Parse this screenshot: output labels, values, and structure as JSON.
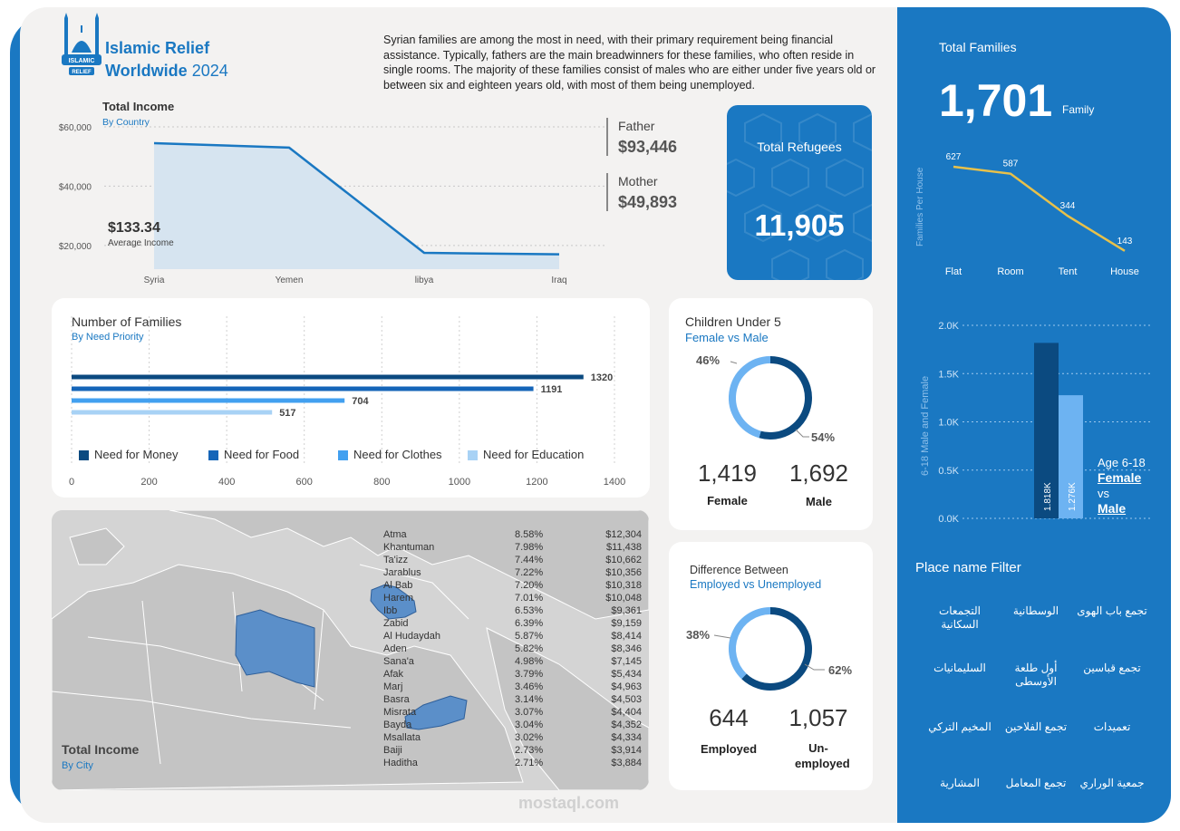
{
  "brand": {
    "name_line1": "Islamic Relief",
    "name_line2": "Worldwide",
    "year": "2024",
    "logo_text": "ISLAMIC RELIEF"
  },
  "description": "Syrian families are among the most in need, with their primary requirement being financial assistance. Typically, fathers are the main breadwinners for these families, who often reside in single rooms. The majority of these families consist of males who are either under five years old or between six and eighteen years old, with most of them being unemployed.",
  "income": {
    "title": "Total Income",
    "subtitle": "By Country",
    "avg_value": "$133.34",
    "avg_label": "Average Income",
    "father_label": "Father",
    "father_value": "$93,446",
    "mother_label": "Mother",
    "mother_value": "$49,893"
  },
  "refugees": {
    "label": "Total Refugees",
    "value": "11,905"
  },
  "families_card": {
    "title": "Number of Families",
    "subtitle": "By Need Priority"
  },
  "children": {
    "title": "Children Under 5",
    "subtitle": "Female vs Male",
    "pct_female": "46%",
    "pct_male": "54%",
    "female_count": "1,419",
    "female_label": "Female",
    "male_count": "1,692",
    "male_label": "Male"
  },
  "employment": {
    "title": "Difference Between",
    "subtitle": "Employed vs Unemployed",
    "pct_employed": "38%",
    "pct_unemployed": "62%",
    "employed_count": "644",
    "employed_label": "Employed",
    "unemployed_count": "1,057",
    "unemployed_label": "Un-employed"
  },
  "map": {
    "title": "Total Income",
    "subtitle": "By City"
  },
  "total_families": {
    "label": "Total Families",
    "value": "1,701",
    "unit": "Family"
  },
  "age_block": {
    "line1": "Age 6-18",
    "line2": "Female",
    "line3": "vs",
    "line4": "Male"
  },
  "filter": {
    "title": "Place name Filter",
    "items": [
      "التجمعات السكانية",
      "الوسطانية",
      "تجمع باب الهوى",
      "السليمانيات",
      "أول طلعة الأوسطى",
      "تجمع قباسين",
      "المخيم التركي",
      "تجمع الفلاحين",
      "تعميدات",
      "المشارية",
      "تجمع المعامل",
      "جمعية الوراري"
    ]
  },
  "watermark": "mostaql.com",
  "colors": {
    "accent": "#1a78c2",
    "dark_navy": "#0b4a80",
    "light_blue": "#6db3f2",
    "area_fill": "#d6e4f0",
    "yellow_line": "#e8c14a"
  },
  "chart_data": [
    {
      "type": "area",
      "title": "Total Income",
      "subtitle": "By Country",
      "categories": [
        "Syria",
        "Yemen",
        "libya",
        "Iraq"
      ],
      "values": [
        54500,
        53000,
        17500,
        17000
      ],
      "ylim": [
        12000,
        60000
      ],
      "yticks": [
        20000,
        40000,
        60000
      ],
      "ytick_labels": [
        "$20,000",
        "$40,000",
        "$60,000"
      ],
      "grid": true
    },
    {
      "type": "bar",
      "orientation": "horizontal",
      "title": "Number of Families",
      "subtitle": "By Need Priority",
      "categories": [
        "Need for Money",
        "Need for Food",
        "Need for Clothes",
        "Need for Education"
      ],
      "values": [
        1320,
        1191,
        704,
        517
      ],
      "colors": [
        "#0b4a80",
        "#1565b8",
        "#42a0f0",
        "#a8d2f5"
      ],
      "xlim": [
        0,
        1400
      ],
      "xticks": [
        0,
        200,
        400,
        600,
        800,
        1000,
        1200,
        1400
      ],
      "legend": "bottom"
    },
    {
      "type": "pie",
      "title": "Children Under 5",
      "subtitle": "Female vs Male",
      "labels": [
        "Female",
        "Male"
      ],
      "values": [
        1419,
        1692
      ],
      "percents": [
        "46%",
        "54%"
      ],
      "colors": [
        "#6db3f2",
        "#0b4a80"
      ]
    },
    {
      "type": "pie",
      "title": "Difference Between",
      "subtitle": "Employed vs Unemployed",
      "labels": [
        "Employed",
        "Unemployed"
      ],
      "values": [
        644,
        1057
      ],
      "percents": [
        "38%",
        "62%"
      ],
      "colors": [
        "#6db3f2",
        "#0b4a80"
      ]
    },
    {
      "type": "line",
      "ylabel": "Families Per House",
      "categories": [
        "Flat",
        "Room",
        "Tent",
        "House"
      ],
      "values": [
        627,
        587,
        344,
        143
      ],
      "color": "#e8c14a"
    },
    {
      "type": "bar",
      "ylabel": "6-18 Male and Female",
      "categories": [
        "Female",
        "Male"
      ],
      "values": [
        1818,
        1276
      ],
      "value_labels": [
        "1.818K",
        "1.276K"
      ],
      "colors": [
        "#0b4a80",
        "#6db3f2"
      ],
      "ylim": [
        0,
        2000
      ],
      "yticks": [
        0,
        500,
        1000,
        1500,
        2000
      ],
      "ytick_labels": [
        "0.0K",
        "0.5K",
        "1.0K",
        "1.5K",
        "2.0K"
      ]
    },
    {
      "type": "table",
      "title": "Total Income",
      "subtitle": "By City",
      "rows": [
        [
          "Atma",
          "8.58%",
          "$12,304"
        ],
        [
          "Khantuman",
          "7.98%",
          "$11,438"
        ],
        [
          "Ta'izz",
          "7.44%",
          "$10,662"
        ],
        [
          "Jarablus",
          "7.22%",
          "$10,356"
        ],
        [
          "Al Bab",
          "7.20%",
          "$10,318"
        ],
        [
          "Harem",
          "7.01%",
          "$10,048"
        ],
        [
          "Ibb",
          "6.53%",
          "$9,361"
        ],
        [
          "Zabid",
          "6.39%",
          "$9,159"
        ],
        [
          "Al Hudaydah",
          "5.87%",
          "$8,414"
        ],
        [
          "Aden",
          "5.82%",
          "$8,346"
        ],
        [
          "Sana'a",
          "4.98%",
          "$7,145"
        ],
        [
          "Afak",
          "3.79%",
          "$5,434"
        ],
        [
          "Marj",
          "3.46%",
          "$4,963"
        ],
        [
          "Basra",
          "3.14%",
          "$4,503"
        ],
        [
          "Misrata",
          "3.07%",
          "$4,404"
        ],
        [
          "Bayda",
          "3.04%",
          "$4,352"
        ],
        [
          "Msallata",
          "3.02%",
          "$4,334"
        ],
        [
          "Baiji",
          "2.73%",
          "$3,914"
        ],
        [
          "Haditha",
          "2.71%",
          "$3,884"
        ]
      ]
    }
  ]
}
